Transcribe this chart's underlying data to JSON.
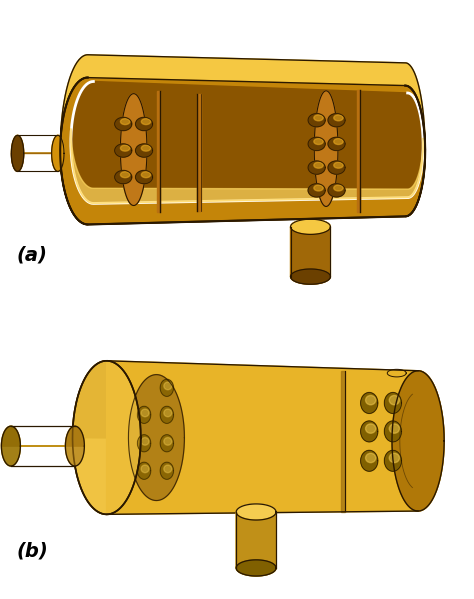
{
  "bg_color": "#ffffff",
  "label_a": "(a)",
  "label_b": "(b)",
  "label_fontsize": 14,
  "a": {
    "shell_gold": "#D4920A",
    "shell_light": "#F5C842",
    "shell_dark": "#A06808",
    "interior_dark": "#8B5500",
    "interior_med": "#C07818",
    "interior_light": "#E8A820",
    "baffle_col": "#B87010",
    "hole_dark": "#6B4000",
    "highlight": "#FFD860",
    "white_edge": "#FFFFFF",
    "outline": "#2a1800"
  },
  "b": {
    "shell_gold": "#E8B428",
    "shell_light": "#F5CC50",
    "shell_dark": "#C09018",
    "shell_darker": "#B07808",
    "interior_dark": "#A07010",
    "baffle_col": "#C09820",
    "hole_dark": "#806000",
    "highlight": "#FFE070",
    "outline": "#2a1800"
  },
  "fig_width": 4.74,
  "fig_height": 5.99,
  "dpi": 100
}
